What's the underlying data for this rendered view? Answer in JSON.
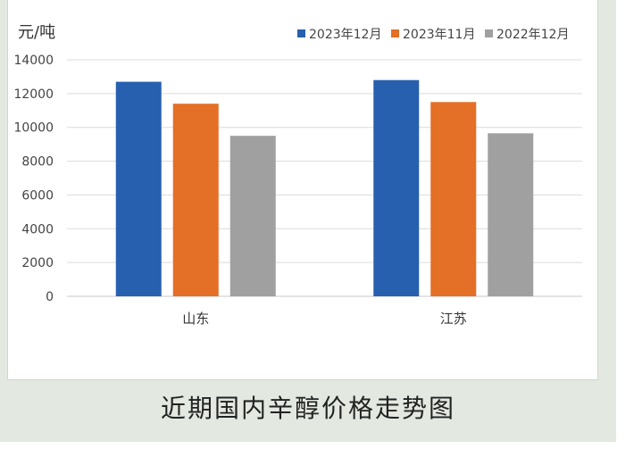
{
  "caption": "近期国内辛醇价格走势图",
  "chart_data": {
    "type": "bar",
    "ylabel": "元/吨",
    "ylim": [
      0,
      14000
    ],
    "yticks": [
      0,
      2000,
      4000,
      6000,
      8000,
      10000,
      12000,
      14000
    ],
    "categories": [
      "山东",
      "江苏"
    ],
    "legend_position": "top-right",
    "grid": true,
    "series": [
      {
        "name": "2023年12月",
        "color": "#2860b0",
        "values": [
          12700,
          12800
        ]
      },
      {
        "name": "2023年11月",
        "color": "#e46f26",
        "values": [
          11400,
          11500
        ]
      },
      {
        "name": "2022年12月",
        "color": "#a0a0a0",
        "values": [
          9500,
          9650
        ]
      }
    ]
  }
}
